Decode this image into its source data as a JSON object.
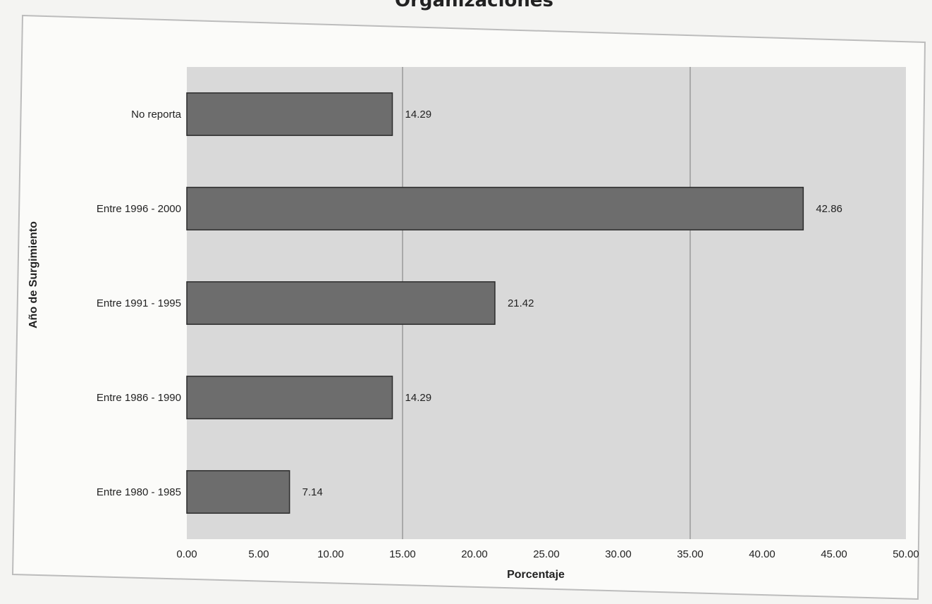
{
  "page_title_fragment": "Organizaciones",
  "colors": {
    "bar_fill": "#6d6d6d",
    "bar_stroke": "#2b2b2b",
    "plot_bg": "#d9d9d9",
    "frame": "#bcbcbc",
    "text": "#222222"
  },
  "chart_data": {
    "type": "bar",
    "orientation": "horizontal",
    "categories": [
      "No reporta",
      "Entre 1996 - 2000",
      "Entre 1991 - 1995",
      "Entre 1986 - 1990",
      "Entre 1980 - 1985"
    ],
    "values": [
      14.29,
      42.86,
      21.42,
      14.29,
      7.14
    ],
    "data_labels": [
      "14.29",
      "42.86",
      "21.42",
      "14.29",
      "7.14"
    ],
    "xlabel": "Porcentaje",
    "ylabel": "Año de Surgimiento",
    "xlim": [
      0,
      50
    ],
    "xticks": [
      "0.00",
      "5.00",
      "10.00",
      "15.00",
      "20.00",
      "25.00",
      "30.00",
      "35.00",
      "40.00",
      "45.00",
      "50.00"
    ],
    "gridlines_x": [
      15,
      35
    ],
    "legend": "none"
  }
}
